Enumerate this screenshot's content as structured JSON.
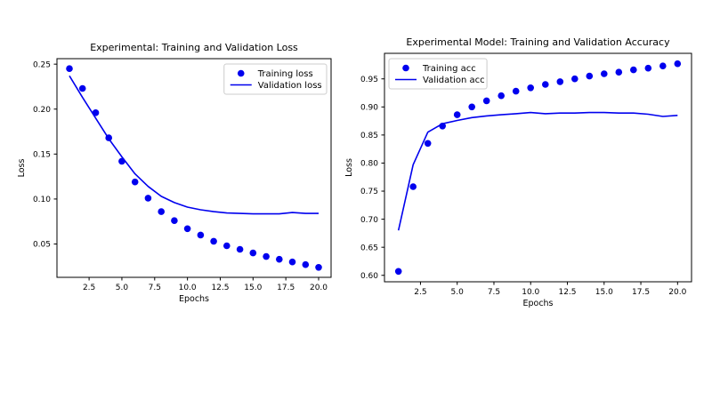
{
  "figure": {
    "background": "#ffffff",
    "accent_blue": "#0000ee",
    "legend_border": "#cccccc",
    "spine_color": "#000000"
  },
  "chart_data": [
    {
      "id": "loss-plot",
      "type": "line",
      "subtype": "scatter+line",
      "title": "Experimental: Training and Validation Loss",
      "xlabel": "Epochs",
      "ylabel": "Loss",
      "x": [
        1,
        2,
        3,
        4,
        5,
        6,
        7,
        8,
        9,
        10,
        11,
        12,
        13,
        14,
        15,
        16,
        17,
        18,
        19,
        20
      ],
      "series": [
        {
          "name": "Training loss",
          "style": "scatter",
          "values": [
            0.245,
            0.223,
            0.196,
            0.168,
            0.142,
            0.119,
            0.101,
            0.086,
            0.076,
            0.067,
            0.06,
            0.053,
            0.048,
            0.044,
            0.04,
            0.036,
            0.033,
            0.03,
            0.027,
            0.024
          ]
        },
        {
          "name": "Validation loss",
          "style": "line",
          "values": [
            0.237,
            0.213,
            0.19,
            0.167,
            0.147,
            0.128,
            0.114,
            0.103,
            0.096,
            0.091,
            0.088,
            0.086,
            0.0845,
            0.084,
            0.0835,
            0.0835,
            0.0835,
            0.085,
            0.084,
            0.084
          ]
        }
      ],
      "xlim": [
        0.05,
        20.95
      ],
      "ylim": [
        0.0129,
        0.2561
      ],
      "xticks": {
        "values": [
          2.5,
          5.0,
          7.5,
          10.0,
          12.5,
          15.0,
          17.5,
          20.0
        ],
        "labels": [
          "2.5",
          "5.0",
          "7.5",
          "10.0",
          "12.5",
          "15.0",
          "17.5",
          "20.0"
        ]
      },
      "yticks": {
        "values": [
          0.05,
          0.1,
          0.15,
          0.2,
          0.25
        ],
        "labels": [
          "0.05",
          "0.10",
          "0.15",
          "0.20",
          "0.25"
        ]
      },
      "legend_pos": "upper-right",
      "grid": false,
      "color": "#0000ee"
    },
    {
      "id": "accuracy-plot",
      "type": "line",
      "subtype": "scatter+line",
      "title": "Experimental Model: Training and Validation Accuracy",
      "xlabel": "Epochs",
      "ylabel": "Loss",
      "x": [
        1,
        2,
        3,
        4,
        5,
        6,
        7,
        8,
        9,
        10,
        11,
        12,
        13,
        14,
        15,
        16,
        17,
        18,
        19,
        20
      ],
      "series": [
        {
          "name": "Training acc",
          "style": "scatter",
          "values": [
            0.607,
            0.758,
            0.835,
            0.866,
            0.886,
            0.9,
            0.911,
            0.92,
            0.928,
            0.934,
            0.94,
            0.945,
            0.95,
            0.955,
            0.959,
            0.962,
            0.966,
            0.969,
            0.973,
            0.977
          ]
        },
        {
          "name": "Validation acc",
          "style": "line",
          "values": [
            0.68,
            0.797,
            0.855,
            0.87,
            0.876,
            0.881,
            0.884,
            0.886,
            0.888,
            0.89,
            0.888,
            0.889,
            0.889,
            0.89,
            0.89,
            0.889,
            0.889,
            0.887,
            0.883,
            0.885
          ]
        }
      ],
      "xlim": [
        0.05,
        20.95
      ],
      "ylim": [
        0.5885,
        0.9955
      ],
      "xticks": {
        "values": [
          2.5,
          5.0,
          7.5,
          10.0,
          12.5,
          15.0,
          17.5,
          20.0
        ],
        "labels": [
          "2.5",
          "5.0",
          "7.5",
          "10.0",
          "12.5",
          "15.0",
          "17.5",
          "20.0"
        ]
      },
      "yticks": {
        "values": [
          0.6,
          0.65,
          0.7,
          0.75,
          0.8,
          0.85,
          0.9,
          0.95
        ],
        "labels": [
          "0.60",
          "0.65",
          "0.70",
          "0.75",
          "0.80",
          "0.85",
          "0.90",
          "0.95"
        ]
      },
      "legend_pos": "upper-left",
      "grid": false,
      "color": "#0000ee"
    }
  ]
}
